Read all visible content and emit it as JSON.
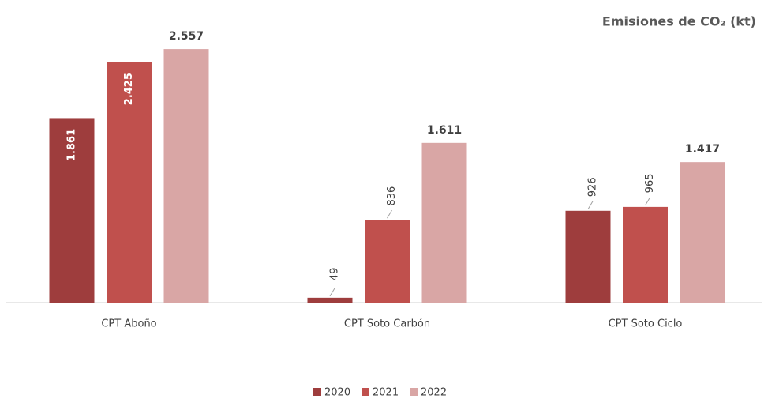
{
  "chart_data": {
    "type": "bar",
    "title": "Emisiones de CO₂ (kt)",
    "categories": [
      "CPT Aboño",
      "CPT Soto Carbón",
      "CPT Soto Ciclo"
    ],
    "series": [
      {
        "name": "2020",
        "color": "#9e3d3d",
        "values": [
          1861,
          49,
          926
        ],
        "value_labels": [
          "1.861",
          "49",
          "926"
        ]
      },
      {
        "name": "2021",
        "color": "#c0504d",
        "values": [
          2425,
          836,
          965
        ],
        "value_labels": [
          "2.425",
          "836",
          "965"
        ]
      },
      {
        "name": "2022",
        "color": "#d9a6a5",
        "values": [
          2557,
          1611,
          1417
        ],
        "value_labels": [
          "2.557",
          "1.611",
          "1.417"
        ]
      }
    ],
    "ylim": [
      0,
      2800
    ],
    "grid": false,
    "legend": "bottom"
  }
}
